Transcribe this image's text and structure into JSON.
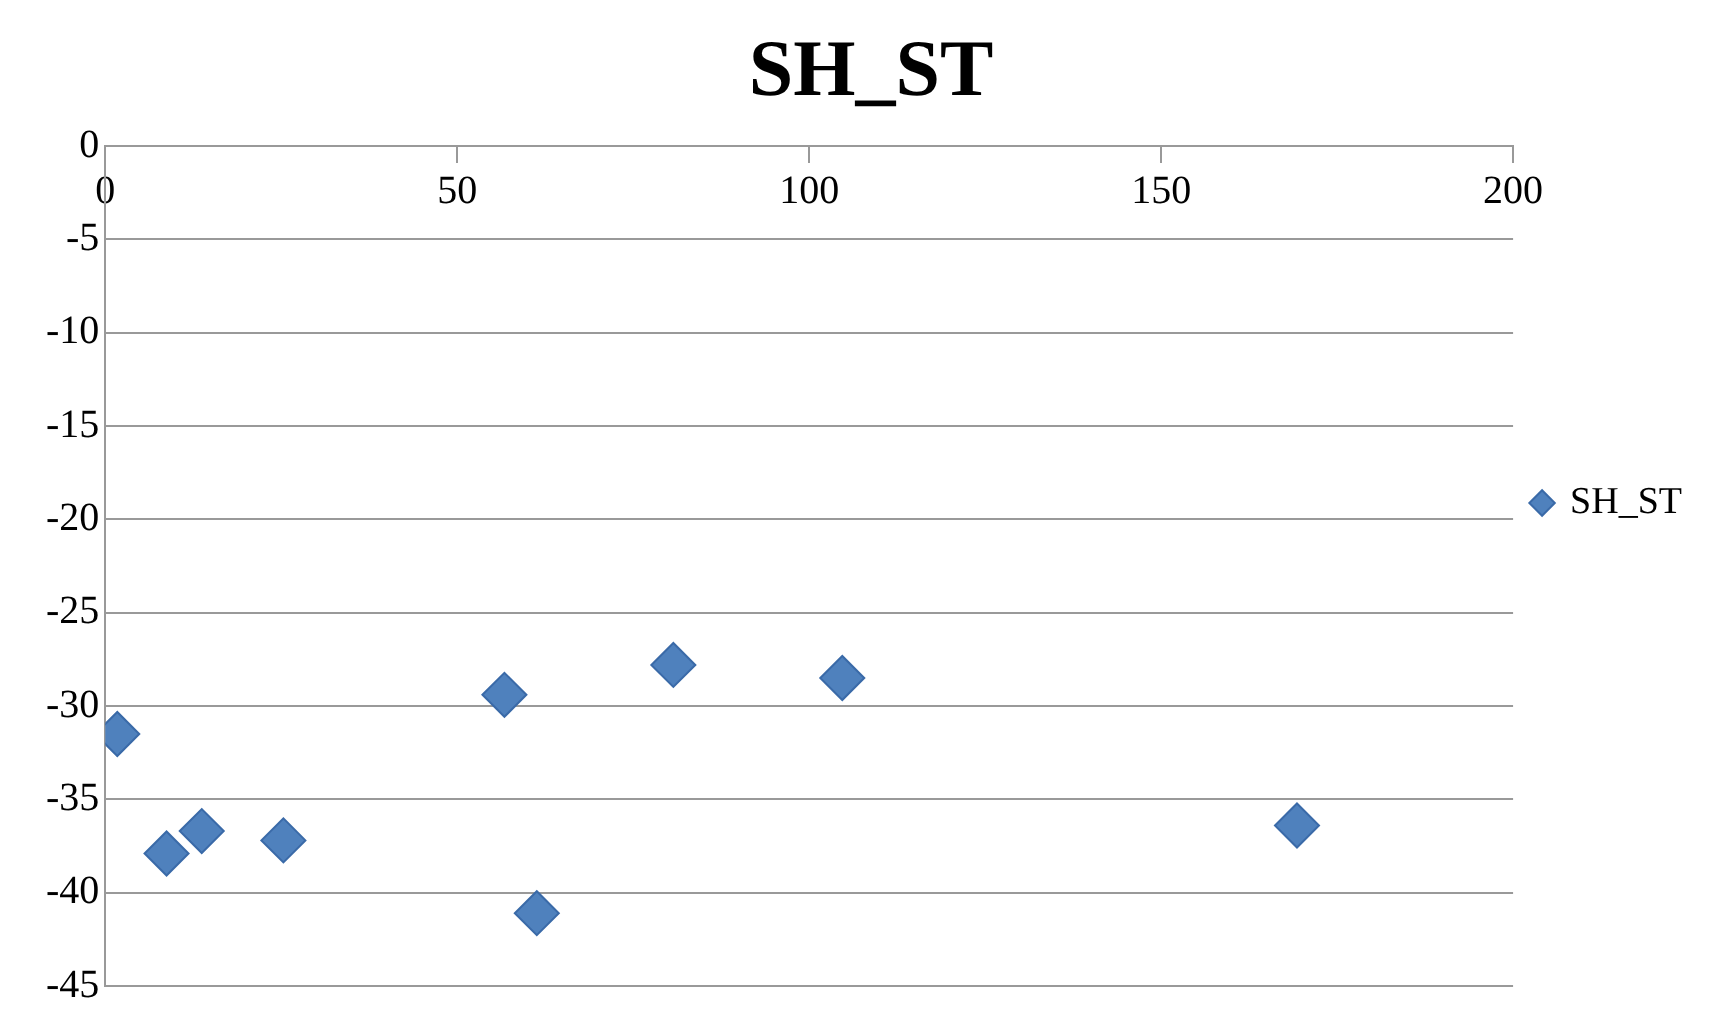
{
  "chart_data": {
    "type": "scatter",
    "title": "SH_ST",
    "series": [
      {
        "name": "SH_ST",
        "color": "#4f81bd",
        "x": [
          1.7,
          8.7,
          13.7,
          25.3,
          56.7,
          61.3,
          80.7,
          104.7,
          169.3
        ],
        "values": [
          -31.5,
          -37.9,
          -36.7,
          -37.2,
          -29.4,
          -41.1,
          -27.8,
          -28.5,
          -36.4
        ]
      }
    ],
    "xlim": [
      0,
      200
    ],
    "xticks": [
      0,
      50,
      100,
      150,
      200
    ],
    "ylim": [
      -45,
      0
    ],
    "yticks": [
      0,
      -5,
      -10,
      -15,
      -20,
      -25,
      -30,
      -35,
      -40,
      -45
    ],
    "grid": "y",
    "legend": "right",
    "marker": "diamond"
  }
}
